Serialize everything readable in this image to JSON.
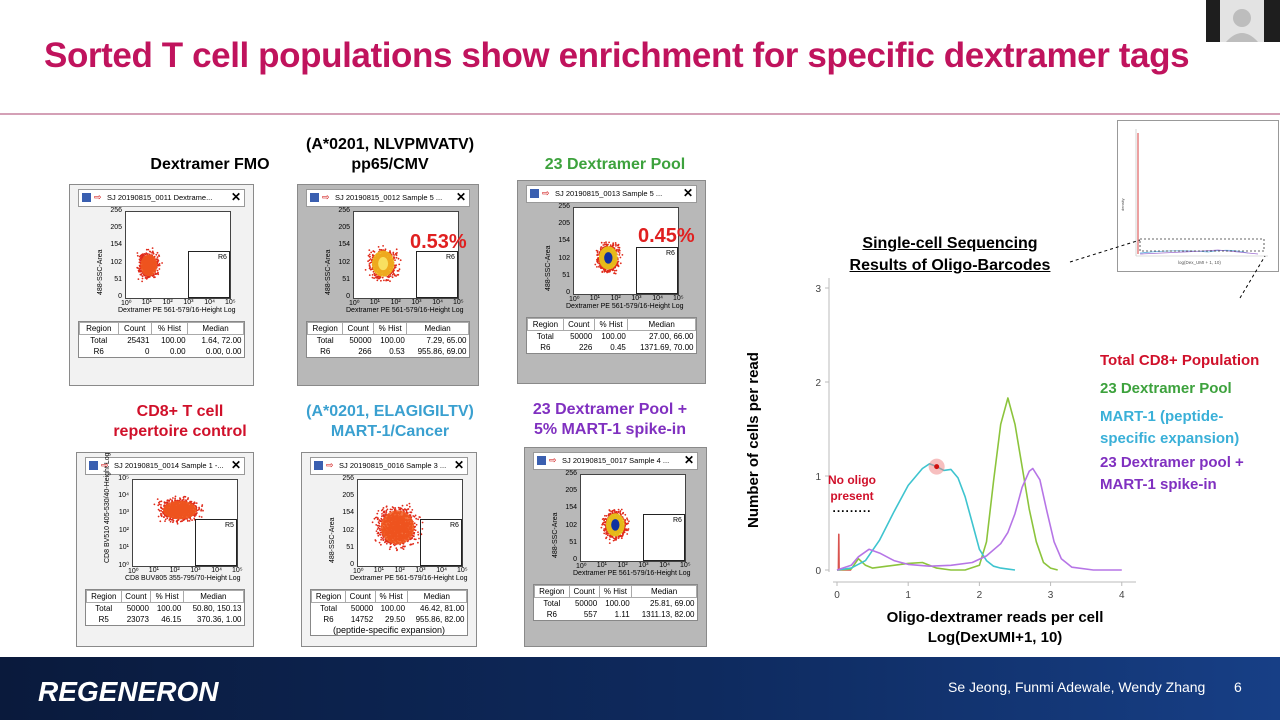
{
  "slide": {
    "title": "Sorted T cell populations show enrichment for specific dextramer tags",
    "footer_logo": "REGENERON",
    "authors": "Se Jeong, Funmi Adewale, Wendy Zhang",
    "page_number": "6"
  },
  "colors": {
    "title": "#c0135d",
    "red_label": "#d0102a",
    "green_label": "#3da23d",
    "blue_label": "#3aa0d0",
    "purple_label": "#8030c0"
  },
  "panels": [
    {
      "title": "Dextramer FMO",
      "window_title": "SJ 20190815_0011 Dextrame...",
      "ylabel": "488-SSC-Area",
      "xlabel": "Dextramer PE 561-579/16-Height Log",
      "yticks": [
        "256",
        "205",
        "154",
        "102",
        "51",
        "0"
      ],
      "gate": "R6",
      "percent": "",
      "stats_headers": [
        "Region",
        "Count",
        "% Hist",
        "Median"
      ],
      "rows": [
        [
          "Total",
          "25431",
          "100.00",
          "1.64, 72.00"
        ],
        [
          "R6",
          "0",
          "0.00",
          "0.00, 0.00"
        ]
      ],
      "note": ""
    },
    {
      "title": "(A*0201, NLVPMVATV)",
      "title2": "pp65/CMV",
      "window_title": "SJ 20190815_0012 Sample 5 ...",
      "ylabel": "488-SSC-Area",
      "xlabel": "Dextramer PE 561-579/16-Height Log",
      "yticks": [
        "256",
        "205",
        "154",
        "102",
        "51",
        "0"
      ],
      "gate": "R6",
      "percent": "0.53%",
      "stats_headers": [
        "Region",
        "Count",
        "% Hist",
        "Median"
      ],
      "rows": [
        [
          "Total",
          "50000",
          "100.00",
          "7.29, 65.00"
        ],
        [
          "R6",
          "266",
          "0.53",
          "955.86, 69.00"
        ]
      ],
      "note": ""
    },
    {
      "title": "23 Dextramer Pool",
      "window_title": "SJ 20190815_0013 Sample 5 ...",
      "ylabel": "488-SSC-Area",
      "xlabel": "Dextramer PE 561-579/16-Height Log",
      "yticks": [
        "256",
        "205",
        "154",
        "102",
        "51",
        "0"
      ],
      "gate": "R6",
      "percent": "0.45%",
      "stats_headers": [
        "Region",
        "Count",
        "% Hist",
        "Median"
      ],
      "rows": [
        [
          "Total",
          "50000",
          "100.00",
          "27.00, 66.00"
        ],
        [
          "R6",
          "226",
          "0.45",
          "1371.69, 70.00"
        ]
      ],
      "note": ""
    },
    {
      "title": "CD8+ T cell",
      "title2": "repertoire control",
      "window_title": "SJ 20190815_0014 Sample 1 -...",
      "ylabel": "CD8 BV510 405-530/40-Height Log",
      "xlabel": "CD8 BUV805 355-795/70-Height Log",
      "yticks": [
        "10⁵",
        "10⁴",
        "10³",
        "10²",
        "10¹",
        "10⁰"
      ],
      "gate": "R5",
      "percent": "",
      "stats_headers": [
        "Region",
        "Count",
        "% Hist",
        "Median"
      ],
      "rows": [
        [
          "Total",
          "50000",
          "100.00",
          "50.80, 150.13"
        ],
        [
          "R5",
          "23073",
          "46.15",
          "370.36, 1.00"
        ]
      ],
      "note": ""
    },
    {
      "title": "(A*0201, ELAGIGILTV)",
      "title2": "MART-1/Cancer",
      "window_title": "SJ 20190815_0016 Sample 3 ...",
      "ylabel": "488-SSC-Area",
      "xlabel": "Dextramer PE 561-579/16-Height Log",
      "yticks": [
        "256",
        "205",
        "154",
        "102",
        "51",
        "0"
      ],
      "gate": "R6",
      "percent": "",
      "stats_headers": [
        "Region",
        "Count",
        "% Hist",
        "Median"
      ],
      "rows": [
        [
          "Total",
          "50000",
          "100.00",
          "46.42, 81.00"
        ],
        [
          "R6",
          "14752",
          "29.50",
          "955.86, 82.00"
        ]
      ],
      "note": "(peptide-specific expansion)"
    },
    {
      "title": "23 Dextramer Pool +",
      "title2": "5% MART-1 spike-in",
      "window_title": "SJ 20190815_0017 Sample 4 ...",
      "ylabel": "488-SSC-Area",
      "xlabel": "Dextramer PE 561-579/16-Height Log",
      "yticks": [
        "256",
        "205",
        "154",
        "102",
        "51",
        "0"
      ],
      "gate": "R6",
      "percent": "",
      "stats_headers": [
        "Region",
        "Count",
        "% Hist",
        "Median"
      ],
      "rows": [
        [
          "Total",
          "50000",
          "100.00",
          "25.81, 69.00"
        ],
        [
          "R6",
          "557",
          "1.11",
          "1311.13, 82.00"
        ]
      ],
      "note": ""
    }
  ],
  "xticks_log": [
    "10⁰",
    "10¹",
    "10²",
    "10³",
    "10⁴",
    "10⁵"
  ],
  "sequencing": {
    "heading_line1": "Single-cell Sequencing",
    "heading_line2": "Results of Oligo-Barcodes",
    "no_oligo_label_line1": "No oligo",
    "no_oligo_label_line2": "present",
    "inset_xlabel": "log(Dex_UMI + 1, 10)",
    "inset_ylabel": "density"
  },
  "chart_data": {
    "type": "line",
    "title": "",
    "xlabel": "Oligo-dextramer reads per cell",
    "xlabel2": "Log(DexUMI+1, 10)",
    "ylabel": "Number of cells per read",
    "xlim": [
      0,
      4.2
    ],
    "ylim": [
      0,
      3
    ],
    "xticks": [
      0,
      1,
      2,
      3,
      4
    ],
    "yticks": [
      0,
      1,
      2,
      3
    ],
    "legend_position": "right",
    "series": [
      {
        "name": "Total CD8+ Population",
        "color": "#d9534f",
        "x": [
          0.0,
          0.02,
          0.025,
          0.03,
          0.04,
          0.06,
          0.2
        ],
        "y": [
          0.0,
          0.0,
          0.38,
          0.0,
          0.0,
          0.0,
          0.0
        ]
      },
      {
        "name": "23 Dextramer Pool",
        "color": "#8cc43c",
        "x": [
          0.0,
          0.2,
          0.3,
          0.4,
          0.5,
          0.7,
          1.0,
          1.2,
          1.4,
          1.6,
          1.8,
          2.0,
          2.1,
          2.2,
          2.3,
          2.4,
          2.5,
          2.6,
          2.7,
          2.8,
          2.9,
          3.0,
          3.1
        ],
        "y": [
          0.0,
          0.01,
          0.12,
          0.05,
          0.02,
          0.04,
          0.07,
          0.08,
          0.02,
          0.0,
          0.0,
          0.05,
          0.3,
          0.95,
          1.55,
          1.83,
          1.55,
          1.1,
          0.65,
          0.3,
          0.08,
          0.02,
          0.0
        ]
      },
      {
        "name": "MART-1 (peptide-specific expansion)",
        "color": "#3ec4cf",
        "x": [
          0.0,
          0.2,
          0.4,
          0.6,
          0.8,
          1.0,
          1.2,
          1.3,
          1.4,
          1.5,
          1.6,
          1.7,
          1.8,
          1.9,
          2.0,
          2.1,
          2.2,
          2.3,
          2.4,
          2.5
        ],
        "y": [
          0.0,
          0.02,
          0.1,
          0.32,
          0.62,
          0.9,
          1.08,
          1.13,
          1.1,
          1.06,
          1.07,
          0.98,
          0.78,
          0.5,
          0.22,
          0.1,
          0.04,
          0.02,
          0.01,
          0.0
        ]
      },
      {
        "name": "23 Dextramer pool + MART-1 spike-in",
        "color": "#b675e6",
        "x": [
          0.0,
          0.2,
          0.3,
          0.45,
          0.6,
          0.8,
          1.0,
          1.3,
          1.6,
          1.9,
          2.1,
          2.3,
          2.4,
          2.5,
          2.6,
          2.7,
          2.75,
          2.85,
          2.95,
          3.05,
          3.15,
          3.3,
          3.6,
          4.0
        ],
        "y": [
          0.0,
          0.05,
          0.14,
          0.22,
          0.18,
          0.1,
          0.06,
          0.04,
          0.05,
          0.08,
          0.15,
          0.28,
          0.4,
          0.6,
          0.88,
          1.05,
          1.08,
          0.96,
          0.62,
          0.3,
          0.12,
          0.03,
          0.0,
          0.0
        ]
      }
    ]
  }
}
